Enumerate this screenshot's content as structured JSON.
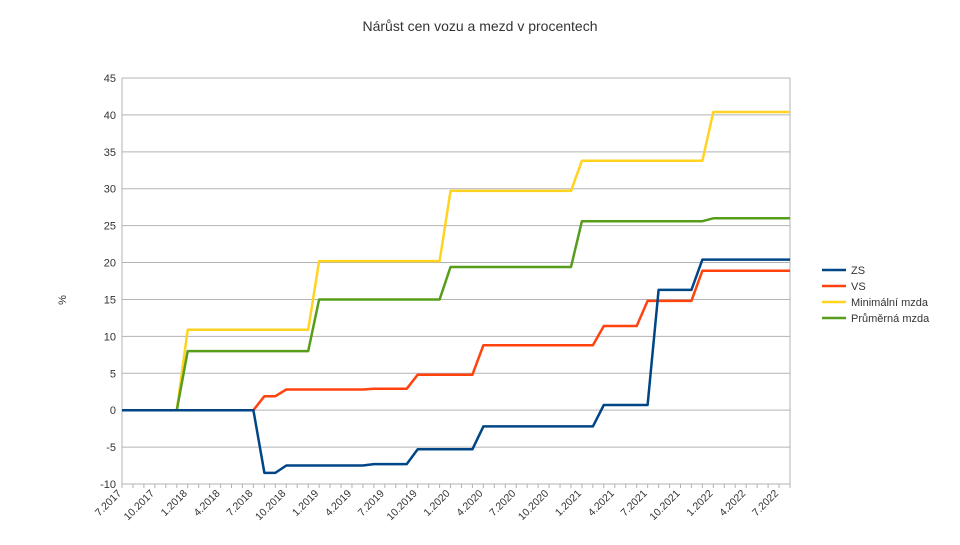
{
  "chart_data": {
    "type": "line",
    "title": "Nárůst cen vozu a mezd v procentech",
    "xlabel": "",
    "ylabel": "%",
    "ylim": [
      -10,
      45
    ],
    "yticks": [
      -10,
      -5,
      0,
      5,
      10,
      15,
      20,
      25,
      30,
      35,
      40,
      45
    ],
    "grid": true,
    "legend_position": "right",
    "x": [
      "7.2017",
      "8.2017",
      "9.2017",
      "10.2017",
      "11.2017",
      "12.2017",
      "1.2018",
      "2.2018",
      "3.2018",
      "4.2018",
      "5.2018",
      "6.2018",
      "7.2018",
      "8.2018",
      "9.2018",
      "10.2018",
      "11.2018",
      "12.2018",
      "1.2019",
      "2.2019",
      "3.2019",
      "4.2019",
      "5.2019",
      "6.2019",
      "7.2019",
      "8.2019",
      "9.2019",
      "10.2019",
      "11.2019",
      "12.2019",
      "1.2020",
      "2.2020",
      "3.2020",
      "4.2020",
      "5.2020",
      "6.2020",
      "7.2020",
      "8.2020",
      "9.2020",
      "10.2020",
      "11.2020",
      "12.2020",
      "1.2021",
      "2.2021",
      "3.2021",
      "4.2021",
      "5.2021",
      "6.2021",
      "7.2021",
      "8.2021",
      "9.2021",
      "10.2021",
      "11.2021",
      "12.2021",
      "1.2022",
      "2.2022",
      "3.2022",
      "4.2022",
      "5.2022",
      "6.2022",
      "7.2022",
      "8.2022"
    ],
    "xtick_labels": [
      "7.2017",
      "10.2017",
      "1.2018",
      "4.2018",
      "7.2018",
      "10.2018",
      "1.2019",
      "4.2019",
      "7.2019",
      "10.2019",
      "1.2020",
      "4.2020",
      "7.2020",
      "10.2020",
      "1.2021",
      "4.2021",
      "7.2021",
      "10.2021",
      "1.2022",
      "4.2022",
      "7.2022"
    ],
    "series": [
      {
        "name": "ZS",
        "color": "#004586",
        "values": [
          0,
          0,
          0,
          0,
          0,
          0,
          0,
          0,
          0,
          0,
          0,
          0,
          0,
          -8.5,
          -8.5,
          -7.5,
          -7.5,
          -7.5,
          -7.5,
          -7.5,
          -7.5,
          -7.5,
          -7.5,
          -7.3,
          -7.3,
          -7.3,
          -7.3,
          -5.3,
          -5.3,
          -5.3,
          -5.3,
          -5.3,
          -5.3,
          -2.2,
          -2.2,
          -2.2,
          -2.2,
          -2.2,
          -2.2,
          -2.2,
          -2.2,
          -2.2,
          -2.2,
          -2.2,
          0.7,
          0.7,
          0.7,
          0.7,
          0.7,
          16.3,
          16.3,
          16.3,
          16.3,
          20.4,
          20.4,
          20.4,
          20.4,
          20.4,
          20.4,
          20.4,
          20.4,
          20.4
        ]
      },
      {
        "name": "VS",
        "color": "#ff420e",
        "values": [
          0,
          0,
          0,
          0,
          0,
          0,
          0,
          0,
          0,
          0,
          0,
          0,
          0,
          1.9,
          1.9,
          2.8,
          2.8,
          2.8,
          2.8,
          2.8,
          2.8,
          2.8,
          2.8,
          2.9,
          2.9,
          2.9,
          2.9,
          4.8,
          4.8,
          4.8,
          4.8,
          4.8,
          4.8,
          8.8,
          8.8,
          8.8,
          8.8,
          8.8,
          8.8,
          8.8,
          8.8,
          8.8,
          8.8,
          8.8,
          11.4,
          11.4,
          11.4,
          11.4,
          14.8,
          14.8,
          14.8,
          14.8,
          14.8,
          18.9,
          18.9,
          18.9,
          18.9,
          18.9,
          18.9,
          18.9,
          18.9,
          18.9
        ]
      },
      {
        "name": "Minimální mzda",
        "color": "#ffd320",
        "values": [
          0,
          0,
          0,
          0,
          0,
          0,
          10.9,
          10.9,
          10.9,
          10.9,
          10.9,
          10.9,
          10.9,
          10.9,
          10.9,
          10.9,
          10.9,
          10.9,
          20.2,
          20.2,
          20.2,
          20.2,
          20.2,
          20.2,
          20.2,
          20.2,
          20.2,
          20.2,
          20.2,
          20.2,
          29.7,
          29.7,
          29.7,
          29.7,
          29.7,
          29.7,
          29.7,
          29.7,
          29.7,
          29.7,
          29.7,
          29.7,
          33.8,
          33.8,
          33.8,
          33.8,
          33.8,
          33.8,
          33.8,
          33.8,
          33.8,
          33.8,
          33.8,
          33.8,
          40.4,
          40.4,
          40.4,
          40.4,
          40.4,
          40.4,
          40.4,
          40.4
        ]
      },
      {
        "name": "Průměrná mzda",
        "color": "#579d1c",
        "values": [
          0,
          0,
          0,
          0,
          0,
          0,
          8.0,
          8.0,
          8.0,
          8.0,
          8.0,
          8.0,
          8.0,
          8.0,
          8.0,
          8.0,
          8.0,
          8.0,
          15.0,
          15.0,
          15.0,
          15.0,
          15.0,
          15.0,
          15.0,
          15.0,
          15.0,
          15.0,
          15.0,
          15.0,
          19.4,
          19.4,
          19.4,
          19.4,
          19.4,
          19.4,
          19.4,
          19.4,
          19.4,
          19.4,
          19.4,
          19.4,
          25.6,
          25.6,
          25.6,
          25.6,
          25.6,
          25.6,
          25.6,
          25.6,
          25.6,
          25.6,
          25.6,
          25.6,
          26.0,
          26.0,
          26.0,
          26.0,
          26.0,
          26.0,
          26.0,
          26.0
        ]
      }
    ]
  }
}
